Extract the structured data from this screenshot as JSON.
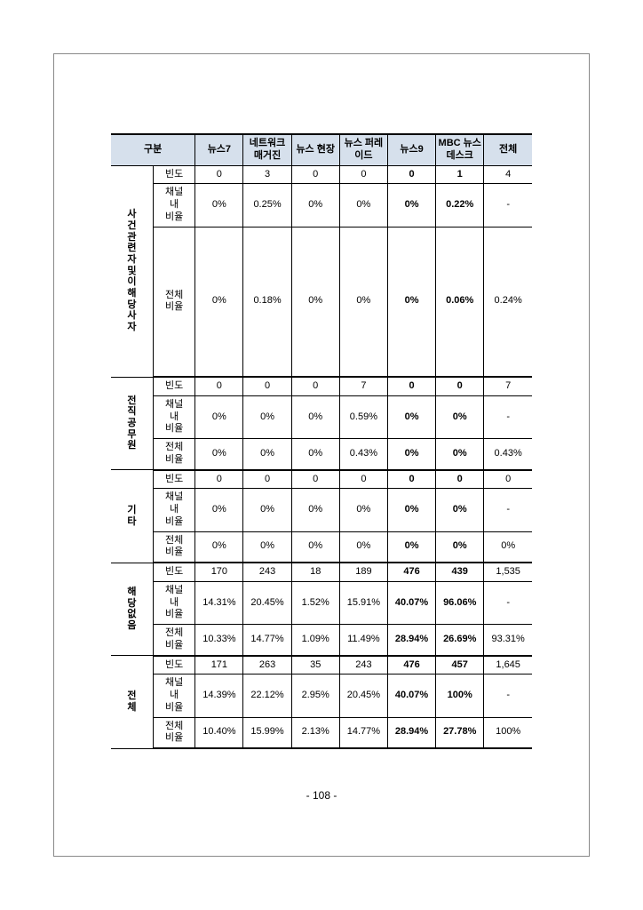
{
  "page_number": "- 108 -",
  "headers": {
    "gubun": "구분",
    "cols": [
      "뉴스7",
      "네트워크\n매거진",
      "뉴스\n현장",
      "뉴스\n퍼레이드",
      "뉴스9",
      "MBC\n뉴스\n데스크",
      "전체"
    ]
  },
  "bold_cols": [
    4,
    5
  ],
  "groups": [
    {
      "label": "사건관련자및이해당사자",
      "rows": [
        {
          "sub": "빈도",
          "vals": [
            "0",
            "3",
            "0",
            "0",
            "0",
            "1",
            "4"
          ]
        },
        {
          "sub": "채널 내 비율",
          "vals": [
            "0%",
            "0.25%",
            "0%",
            "0%",
            "0%",
            "0.22%",
            "-"
          ]
        },
        {
          "sub": "전체 비율",
          "vals": [
            "0%",
            "0.18%",
            "0%",
            "0%",
            "0%",
            "0.06%",
            "0.24%"
          ],
          "tall": true
        }
      ]
    },
    {
      "label": "전직공무원",
      "rows": [
        {
          "sub": "빈도",
          "vals": [
            "0",
            "0",
            "0",
            "7",
            "0",
            "0",
            "7"
          ]
        },
        {
          "sub": "채널 내 비율",
          "vals": [
            "0%",
            "0%",
            "0%",
            "0.59%",
            "0%",
            "0%",
            "-"
          ]
        },
        {
          "sub": "전체 비율",
          "vals": [
            "0%",
            "0%",
            "0%",
            "0.43%",
            "0%",
            "0%",
            "0.43%"
          ]
        }
      ]
    },
    {
      "label": "기타",
      "rows": [
        {
          "sub": "빈도",
          "vals": [
            "0",
            "0",
            "0",
            "0",
            "0",
            "0",
            "0"
          ]
        },
        {
          "sub": "채널 내 비율",
          "vals": [
            "0%",
            "0%",
            "0%",
            "0%",
            "0%",
            "0%",
            "-"
          ]
        },
        {
          "sub": "전체 비율",
          "vals": [
            "0%",
            "0%",
            "0%",
            "0%",
            "0%",
            "0%",
            "0%"
          ]
        }
      ]
    },
    {
      "label": "해당없음",
      "rows": [
        {
          "sub": "빈도",
          "vals": [
            "170",
            "243",
            "18",
            "189",
            "476",
            "439",
            "1,535"
          ]
        },
        {
          "sub": "채널 내 비율",
          "vals": [
            "14.31%",
            "20.45%",
            "1.52%",
            "15.91%",
            "40.07%",
            "96.06%",
            "-"
          ]
        },
        {
          "sub": "전체 비율",
          "vals": [
            "10.33%",
            "14.77%",
            "1.09%",
            "11.49%",
            "28.94%",
            "26.69%",
            "93.31%"
          ]
        }
      ]
    },
    {
      "label": "전체",
      "rows": [
        {
          "sub": "빈도",
          "vals": [
            "171",
            "263",
            "35",
            "243",
            "476",
            "457",
            "1,645"
          ]
        },
        {
          "sub": "채널 내 비율",
          "vals": [
            "14.39%",
            "22.12%",
            "2.95%",
            "20.45%",
            "40.07%",
            "100%",
            "-"
          ]
        },
        {
          "sub": "전체 비율",
          "vals": [
            "10.40%",
            "15.99%",
            "2.13%",
            "14.77%",
            "28.94%",
            "27.78%",
            "100%"
          ]
        }
      ]
    }
  ]
}
